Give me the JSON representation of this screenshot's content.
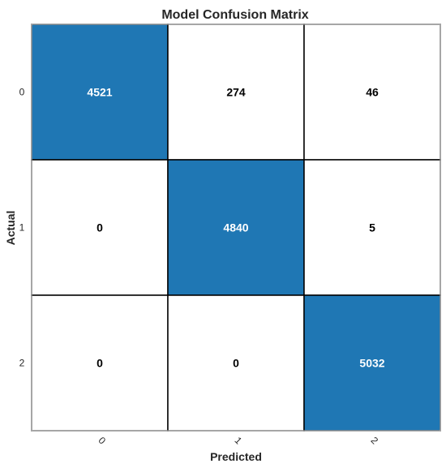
{
  "chart_data": {
    "type": "heatmap",
    "title": "Model Confusion Matrix",
    "xlabel": "Predicted",
    "ylabel": "Actual",
    "x_categories": [
      "0",
      "1",
      "2"
    ],
    "y_categories": [
      "0",
      "1",
      "2"
    ],
    "values": [
      [
        4521,
        274,
        46
      ],
      [
        0,
        4840,
        5
      ],
      [
        0,
        0,
        5032
      ]
    ],
    "colors": {
      "high": "#1f77b4",
      "low": "#ffffff",
      "grid": "#000000",
      "frame": "#cccccc",
      "text_on_high": "#ffffff",
      "text_on_low": "#000000"
    }
  }
}
